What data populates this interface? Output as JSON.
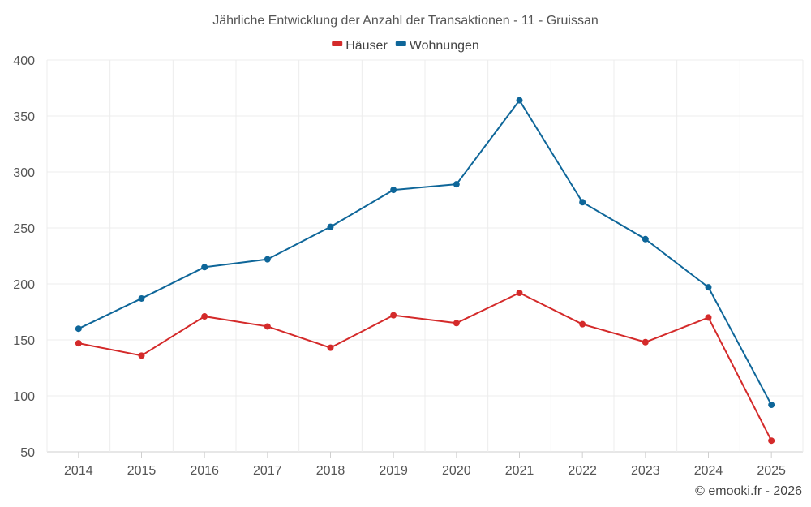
{
  "chart_data": {
    "type": "line",
    "title": "Jährliche Entwicklung der Anzahl der Transaktionen - 11 - Gruissan",
    "xlabel": "",
    "ylabel": "",
    "categories": [
      "2014",
      "2015",
      "2016",
      "2017",
      "2018",
      "2019",
      "2020",
      "2021",
      "2022",
      "2023",
      "2024",
      "2025"
    ],
    "ylim": [
      50,
      400
    ],
    "yticks": [
      50,
      100,
      150,
      200,
      250,
      300,
      350,
      400
    ],
    "grid": true,
    "legend_position": "top-center",
    "series": [
      {
        "name": "Häuser",
        "color": "#d42a2a",
        "values": [
          147,
          136,
          171,
          162,
          143,
          172,
          165,
          192,
          164,
          148,
          170,
          60
        ]
      },
      {
        "name": "Wohnungen",
        "color": "#0e6699",
        "values": [
          160,
          187,
          215,
          222,
          251,
          284,
          289,
          364,
          273,
          240,
          197,
          92
        ]
      }
    ]
  },
  "credit": "© emooki.fr - 2026"
}
